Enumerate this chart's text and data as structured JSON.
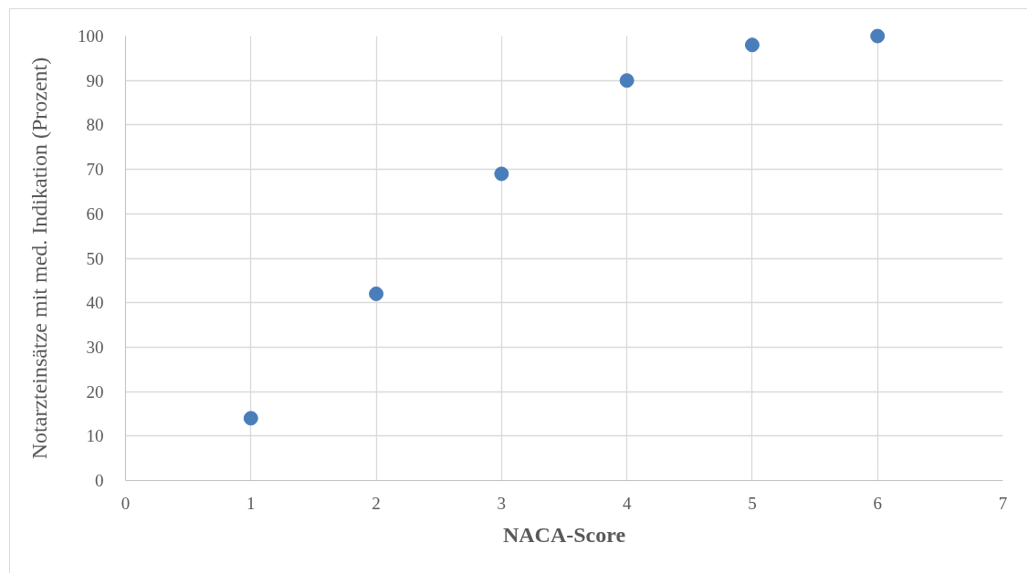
{
  "chart_data": {
    "type": "scatter",
    "xlabel": "NACA-Score",
    "ylabel": "Notarzteinsätze mit med. Indikation (Prozent)",
    "x": [
      1,
      2,
      3,
      4,
      5,
      6
    ],
    "values": [
      14,
      42,
      69,
      90,
      98,
      100
    ],
    "color": "#4a7ebb",
    "marker": "circle",
    "xlim": [
      0,
      7
    ],
    "ylim": [
      0,
      100
    ],
    "xticks": [
      0,
      1,
      2,
      3,
      4,
      5,
      6,
      7
    ],
    "yticks": [
      0,
      10,
      20,
      30,
      40,
      50,
      60,
      70,
      80,
      90,
      100
    ],
    "grid": true
  }
}
